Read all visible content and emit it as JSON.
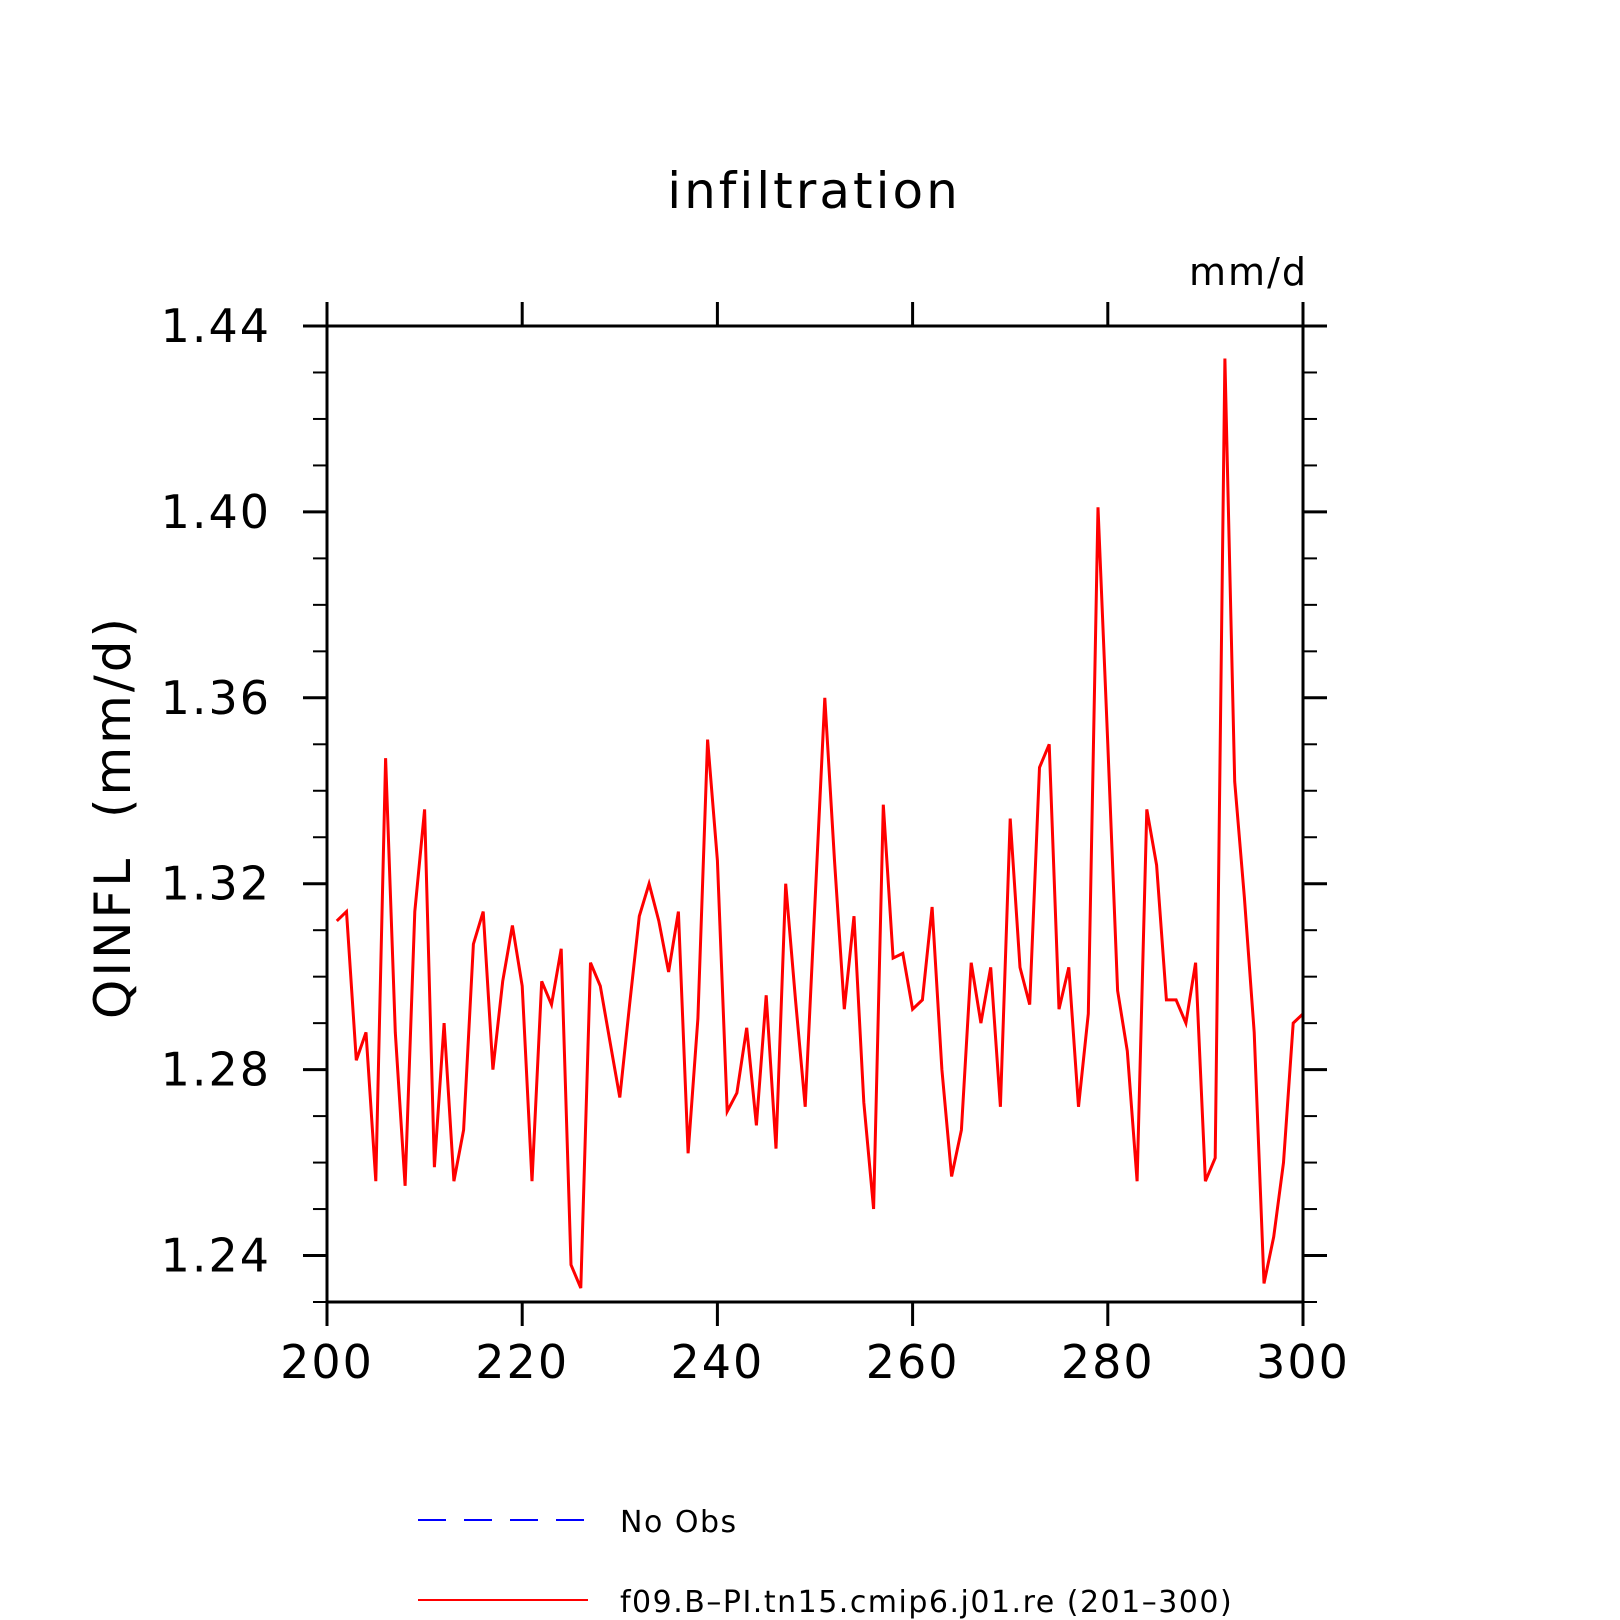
{
  "chart_data": {
    "type": "line",
    "title": "infiltration",
    "units_label": "mm/d",
    "ylabel": "QINFL  (mm/d)",
    "xlabel": "",
    "xlim": [
      200,
      300
    ],
    "ylim": [
      1.23,
      1.44
    ],
    "x_ticks": [
      "200",
      "220",
      "240",
      "260",
      "280",
      "300"
    ],
    "y_ticks": [
      "1.24",
      "1.28",
      "1.32",
      "1.36",
      "1.40",
      "1.44"
    ],
    "grid": false,
    "legend_position": "bottom",
    "series": [
      {
        "name": "No Obs",
        "color": "#0000ff",
        "dash": "dashed",
        "x": [],
        "values": []
      },
      {
        "name": "f09.B–PI.tn15.cmip6.j01.re (201–300)",
        "color": "#ff0000",
        "dash": "solid",
        "x": [
          201,
          202,
          203,
          204,
          205,
          206,
          207,
          208,
          209,
          210,
          211,
          212,
          213,
          214,
          215,
          216,
          217,
          218,
          219,
          220,
          221,
          222,
          223,
          224,
          225,
          226,
          227,
          228,
          229,
          230,
          231,
          232,
          233,
          234,
          235,
          236,
          237,
          238,
          239,
          240,
          241,
          242,
          243,
          244,
          245,
          246,
          247,
          248,
          249,
          250,
          251,
          252,
          253,
          254,
          255,
          256,
          257,
          258,
          259,
          260,
          261,
          262,
          263,
          264,
          265,
          266,
          267,
          268,
          269,
          270,
          271,
          272,
          273,
          274,
          275,
          276,
          277,
          278,
          279,
          280,
          281,
          282,
          283,
          284,
          285,
          286,
          287,
          288,
          289,
          290,
          291,
          292,
          293,
          294,
          295,
          296,
          297,
          298,
          299,
          300
        ],
        "values": [
          1.312,
          1.314,
          1.282,
          1.288,
          1.256,
          1.347,
          1.288,
          1.255,
          1.314,
          1.336,
          1.259,
          1.29,
          1.256,
          1.267,
          1.307,
          1.314,
          1.28,
          1.299,
          1.311,
          1.298,
          1.256,
          1.299,
          1.294,
          1.306,
          1.238,
          1.233,
          1.303,
          1.298,
          1.286,
          1.274,
          1.294,
          1.313,
          1.32,
          1.312,
          1.301,
          1.314,
          1.262,
          1.291,
          1.351,
          1.325,
          1.271,
          1.275,
          1.289,
          1.268,
          1.296,
          1.263,
          1.32,
          1.295,
          1.272,
          1.316,
          1.36,
          1.325,
          1.293,
          1.313,
          1.273,
          1.25,
          1.337,
          1.304,
          1.305,
          1.293,
          1.295,
          1.315,
          1.28,
          1.257,
          1.267,
          1.303,
          1.29,
          1.302,
          1.272,
          1.334,
          1.302,
          1.294,
          1.345,
          1.35,
          1.293,
          1.302,
          1.272,
          1.292,
          1.401,
          1.35,
          1.297,
          1.284,
          1.256,
          1.336,
          1.324,
          1.295,
          1.295,
          1.29,
          1.303,
          1.256,
          1.261,
          1.433,
          1.342,
          1.317,
          1.288,
          1.234,
          1.244,
          1.26,
          1.29,
          1.292
        ]
      }
    ]
  }
}
